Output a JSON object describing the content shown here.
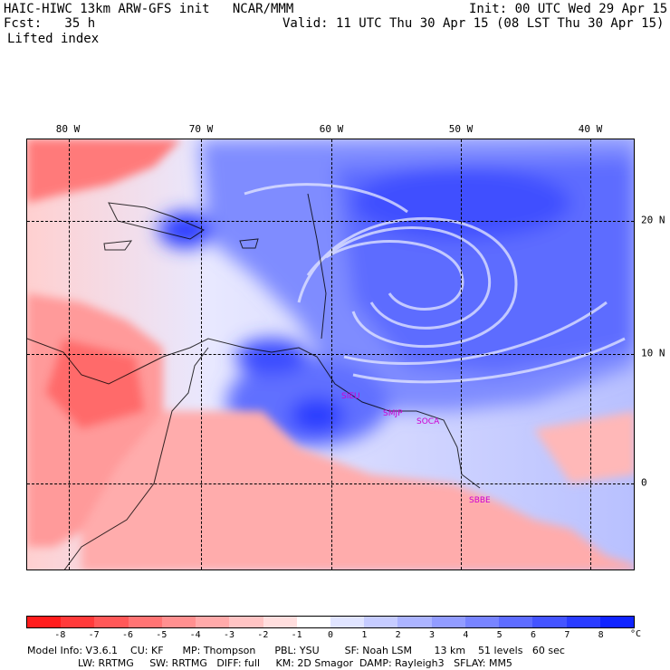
{
  "header": {
    "model_line": "HAIC-HIWC 13km ARW-GFS init   NCAR/MMM",
    "fcst_line": "Fcst:   35 h",
    "field_line": "Lifted index",
    "init_line": "Init: 00 UTC Wed 29 Apr 15",
    "valid_line": "Valid: 11 UTC Thu 30 Apr 15 (08 LST Thu 30 Apr 15)"
  },
  "axes": {
    "longitude_labels": [
      "80 W",
      "70 W",
      "60 W",
      "50 W",
      "40 W"
    ],
    "latitude_labels": [
      "20 N",
      "10 N",
      "0"
    ]
  },
  "stations": [
    "SIEU",
    "SMJP",
    "SOCA",
    "SBBE"
  ],
  "colorbar": {
    "ticks": [
      "-8",
      "-7",
      "-6",
      "-5",
      "-4",
      "-3",
      "-2",
      "-1",
      "0",
      "1",
      "2",
      "3",
      "4",
      "5",
      "6",
      "7",
      "8"
    ],
    "unit": "°C",
    "colors": [
      "#ff1c1c",
      "#ff3a3a",
      "#ff5858",
      "#ff7474",
      "#ff9090",
      "#ffaaaa",
      "#ffc4c4",
      "#ffdede",
      "#ffffff",
      "#e0e4ff",
      "#c6ccff",
      "#acb4ff",
      "#929cff",
      "#7884ff",
      "#5e6cff",
      "#4454ff",
      "#2a3cff",
      "#1024ff"
    ]
  },
  "model_info": {
    "line1": "Model Info: V3.6.1    CU: KF      MP: Thompson      PBL: YSU        SF: Noah LSM       13 km    51 levels   60 sec",
    "line2": "                LW: RRTMG     SW: RRTMG   DIFF: full     KM: 2D Smagor  DAMP: Rayleigh3   SFLAY: MM5"
  }
}
